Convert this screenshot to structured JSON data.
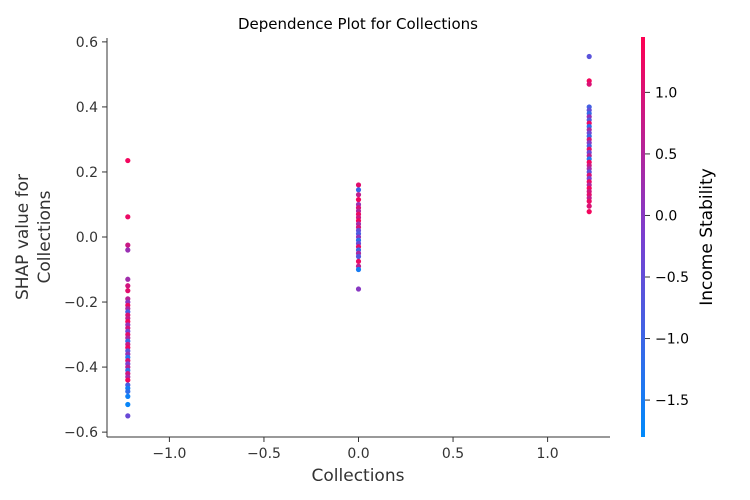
{
  "chart_data": {
    "type": "scatter",
    "title": "Dependence Plot for Collections",
    "xlabel": "Collections",
    "ylabel": [
      "SHAP value for",
      "Collections"
    ],
    "xlim": [
      -1.33,
      1.33
    ],
    "ylim": [
      -0.615,
      0.615
    ],
    "xticks": [
      -1.0,
      -0.5,
      0.0,
      0.5,
      1.0
    ],
    "xtick_labels": [
      "−1.0",
      "−0.5",
      "0.0",
      "0.5",
      "1.0"
    ],
    "yticks": [
      -0.6,
      -0.4,
      -0.2,
      0.0,
      0.2,
      0.4,
      0.6
    ],
    "ytick_labels": [
      "−0.6",
      "−0.4",
      "−0.2",
      "0.0",
      "0.2",
      "0.4",
      "0.6"
    ],
    "grid": false,
    "colorbar": {
      "label": "Income Stability",
      "range": [
        -1.8,
        1.45
      ],
      "ticks": [
        1.0,
        0.5,
        0.0,
        -0.5,
        -1.0,
        -1.5
      ],
      "tick_labels": [
        "1.0",
        "0.5",
        "0.0",
        "−0.5",
        "−1.0",
        "−1.5"
      ],
      "colormap": [
        "#008afb",
        "#7a3fd0",
        "#ff0052"
      ]
    },
    "points": [
      {
        "x": -1.22,
        "y": 0.235,
        "c": 1.3
      },
      {
        "x": -1.22,
        "y": 0.062,
        "c": 1.2
      },
      {
        "x": -1.22,
        "y": -0.025,
        "c": 0.8
      },
      {
        "x": -1.22,
        "y": -0.04,
        "c": 0.2
      },
      {
        "x": -1.22,
        "y": -0.13,
        "c": 0.3
      },
      {
        "x": -1.22,
        "y": -0.15,
        "c": 0.9
      },
      {
        "x": -1.22,
        "y": -0.165,
        "c": 1.1
      },
      {
        "x": -1.22,
        "y": -0.19,
        "c": 0.6
      },
      {
        "x": -1.22,
        "y": -0.2,
        "c": 0.0
      },
      {
        "x": -1.22,
        "y": -0.21,
        "c": 1.2
      },
      {
        "x": -1.22,
        "y": -0.22,
        "c": 0.4
      },
      {
        "x": -1.22,
        "y": -0.23,
        "c": -0.8
      },
      {
        "x": -1.22,
        "y": -0.24,
        "c": 1.0
      },
      {
        "x": -1.22,
        "y": -0.25,
        "c": 0.7
      },
      {
        "x": -1.22,
        "y": -0.26,
        "c": 1.3
      },
      {
        "x": -1.22,
        "y": -0.27,
        "c": 0.1
      },
      {
        "x": -1.22,
        "y": -0.28,
        "c": 0.9
      },
      {
        "x": -1.22,
        "y": -0.29,
        "c": -0.3
      },
      {
        "x": -1.22,
        "y": -0.3,
        "c": 1.1
      },
      {
        "x": -1.22,
        "y": -0.31,
        "c": 0.5
      },
      {
        "x": -1.22,
        "y": -0.32,
        "c": -1.0
      },
      {
        "x": -1.22,
        "y": -0.33,
        "c": 0.8
      },
      {
        "x": -1.22,
        "y": -0.34,
        "c": 1.2
      },
      {
        "x": -1.22,
        "y": -0.35,
        "c": -0.6
      },
      {
        "x": -1.22,
        "y": -0.36,
        "c": 0.2
      },
      {
        "x": -1.22,
        "y": -0.37,
        "c": -1.3
      },
      {
        "x": -1.22,
        "y": -0.38,
        "c": 1.0
      },
      {
        "x": -1.22,
        "y": -0.39,
        "c": -0.2
      },
      {
        "x": -1.22,
        "y": -0.4,
        "c": 0.6
      },
      {
        "x": -1.22,
        "y": -0.41,
        "c": -1.1
      },
      {
        "x": -1.22,
        "y": -0.42,
        "c": 0.9
      },
      {
        "x": -1.22,
        "y": -0.43,
        "c": 0.3
      },
      {
        "x": -1.22,
        "y": -0.44,
        "c": 1.3
      },
      {
        "x": -1.22,
        "y": -0.455,
        "c": -0.9
      },
      {
        "x": -1.22,
        "y": -0.465,
        "c": -1.5
      },
      {
        "x": -1.22,
        "y": -0.475,
        "c": -1.2
      },
      {
        "x": -1.22,
        "y": -0.49,
        "c": -1.6
      },
      {
        "x": -1.22,
        "y": -0.515,
        "c": -1.7
      },
      {
        "x": -1.22,
        "y": -0.55,
        "c": -0.4
      },
      {
        "x": 0.0,
        "y": 0.16,
        "c": 1.1
      },
      {
        "x": 0.0,
        "y": 0.145,
        "c": -1.0
      },
      {
        "x": 0.0,
        "y": 0.13,
        "c": 0.7
      },
      {
        "x": 0.0,
        "y": 0.115,
        "c": 1.3
      },
      {
        "x": 0.0,
        "y": 0.1,
        "c": 0.2
      },
      {
        "x": 0.0,
        "y": 0.09,
        "c": 1.0
      },
      {
        "x": 0.0,
        "y": 0.08,
        "c": 0.5
      },
      {
        "x": 0.0,
        "y": 0.07,
        "c": 1.2
      },
      {
        "x": 0.0,
        "y": 0.06,
        "c": 0.8
      },
      {
        "x": 0.0,
        "y": 0.05,
        "c": 1.3
      },
      {
        "x": 0.0,
        "y": 0.04,
        "c": 0.3
      },
      {
        "x": 0.0,
        "y": 0.03,
        "c": 0.9
      },
      {
        "x": 0.0,
        "y": 0.02,
        "c": -0.5
      },
      {
        "x": 0.0,
        "y": 0.01,
        "c": -0.8
      },
      {
        "x": 0.0,
        "y": 0.0,
        "c": 0.1
      },
      {
        "x": 0.0,
        "y": -0.01,
        "c": -1.2
      },
      {
        "x": 0.0,
        "y": -0.02,
        "c": -0.4
      },
      {
        "x": 0.0,
        "y": -0.03,
        "c": 1.1
      },
      {
        "x": 0.0,
        "y": -0.04,
        "c": -1.0
      },
      {
        "x": 0.0,
        "y": -0.05,
        "c": 0.4
      },
      {
        "x": 0.0,
        "y": -0.06,
        "c": -0.7
      },
      {
        "x": 0.0,
        "y": -0.075,
        "c": 1.2
      },
      {
        "x": 0.0,
        "y": -0.09,
        "c": 0.6
      },
      {
        "x": 0.0,
        "y": -0.1,
        "c": -1.5
      },
      {
        "x": 0.0,
        "y": -0.16,
        "c": 0.0
      },
      {
        "x": 1.22,
        "y": 0.555,
        "c": -0.6
      },
      {
        "x": 1.22,
        "y": 0.48,
        "c": 1.3
      },
      {
        "x": 1.22,
        "y": 0.47,
        "c": 1.0
      },
      {
        "x": 1.22,
        "y": 0.4,
        "c": -0.9
      },
      {
        "x": 1.22,
        "y": 0.39,
        "c": -0.5
      },
      {
        "x": 1.22,
        "y": 0.38,
        "c": -1.1
      },
      {
        "x": 1.22,
        "y": 0.37,
        "c": 0.2
      },
      {
        "x": 1.22,
        "y": 0.36,
        "c": -0.7
      },
      {
        "x": 1.22,
        "y": 0.35,
        "c": 1.2
      },
      {
        "x": 1.22,
        "y": 0.34,
        "c": -1.2
      },
      {
        "x": 1.22,
        "y": 0.33,
        "c": 0.4
      },
      {
        "x": 1.22,
        "y": 0.32,
        "c": -0.3
      },
      {
        "x": 1.22,
        "y": 0.31,
        "c": -1.0
      },
      {
        "x": 1.22,
        "y": 0.3,
        "c": 0.9
      },
      {
        "x": 1.22,
        "y": 0.29,
        "c": 0.0
      },
      {
        "x": 1.22,
        "y": 0.28,
        "c": -0.8
      },
      {
        "x": 1.22,
        "y": 0.27,
        "c": 1.1
      },
      {
        "x": 1.22,
        "y": 0.26,
        "c": -0.4
      },
      {
        "x": 1.22,
        "y": 0.25,
        "c": 0.6
      },
      {
        "x": 1.22,
        "y": 0.24,
        "c": -1.3
      },
      {
        "x": 1.22,
        "y": 0.23,
        "c": 1.3
      },
      {
        "x": 1.22,
        "y": 0.22,
        "c": 0.8
      },
      {
        "x": 1.22,
        "y": 0.21,
        "c": 0.3
      },
      {
        "x": 1.22,
        "y": 0.2,
        "c": -0.6
      },
      {
        "x": 1.22,
        "y": 0.19,
        "c": 1.0
      },
      {
        "x": 1.22,
        "y": 0.18,
        "c": -0.2
      },
      {
        "x": 1.22,
        "y": 0.17,
        "c": 1.2
      },
      {
        "x": 1.22,
        "y": 0.16,
        "c": 0.5
      },
      {
        "x": 1.22,
        "y": 0.15,
        "c": 1.3
      },
      {
        "x": 1.22,
        "y": 0.14,
        "c": 0.9
      },
      {
        "x": 1.22,
        "y": 0.13,
        "c": 1.1
      },
      {
        "x": 1.22,
        "y": 0.12,
        "c": 0.7
      },
      {
        "x": 1.22,
        "y": 0.11,
        "c": 1.2
      },
      {
        "x": 1.22,
        "y": 0.095,
        "c": 1.0
      },
      {
        "x": 1.22,
        "y": 0.078,
        "c": 1.3
      }
    ]
  }
}
